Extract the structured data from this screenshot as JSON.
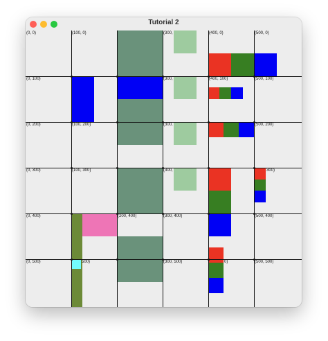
{
  "window": {
    "title": "Tutorial 2"
  },
  "colors": {
    "background": "#ededed",
    "grid": "#111111",
    "sage": "#6a927b",
    "light_green": "#9ecb9f",
    "red": "#ea3323",
    "dark_green": "#377e22",
    "blue": "#0000f5",
    "olive": "#6c8a37",
    "pink": "#ee75b6",
    "cyan": "#73fbfd"
  },
  "grid_labels": [
    "(0, 0)",
    "(100, 0)",
    "(300,",
    "(400, 0)",
    "(500, 0)",
    "(0, 100)",
    "(300,",
    "(400, 100)",
    "(500, 100)",
    "(0, 200)",
    "(100, 200)",
    "(300,",
    "(500, 200)",
    "(0, 300)",
    "(100, 300)",
    "(300,",
    "300)",
    "(0, 400)",
    "(200, 400)",
    "(300, 400)",
    "(500, 400)",
    "(0, 500)",
    "500)",
    "(300, 500)",
    "0)",
    "(500, 500)"
  ]
}
